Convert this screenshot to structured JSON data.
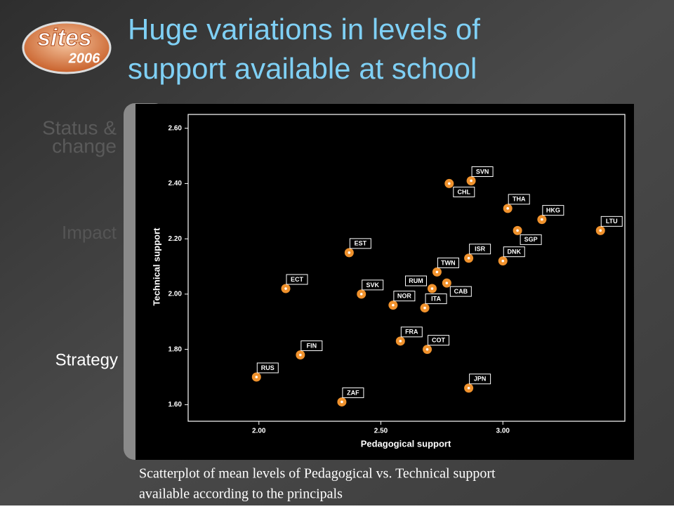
{
  "slide": {
    "title_lines": [
      "Huge variations in levels of",
      "support available at school"
    ],
    "logo": {
      "word": "sites",
      "year": "2006"
    },
    "menu": [
      "Status &",
      "change",
      "Impact",
      "Strategy"
    ],
    "caption_lines": [
      "Scatterplot of mean levels of Pedagogical vs. Technical support",
      "available according to the principals"
    ]
  },
  "chart_data": {
    "type": "scatter",
    "x_label": "Pedagogical support",
    "y_label": "Technical support",
    "color": "#f0922d",
    "series": [
      {
        "labels": [
          "RUS",
          "FIN",
          "ZAF",
          "ECT",
          "EST",
          "SVK",
          "NOR",
          "FRA",
          "COT",
          "ITA",
          "RUM",
          "CAB",
          "TWN",
          "ISR",
          "DNK",
          "JPN",
          "CHL",
          "SVN",
          "THA",
          "HKG",
          "SGP",
          "LTU"
        ],
        "x": [
          1.99,
          2.17,
          2.34,
          2.11,
          2.37,
          2.42,
          2.55,
          2.58,
          2.69,
          2.68,
          2.71,
          2.77,
          2.73,
          2.86,
          3.0,
          2.86,
          2.78,
          2.87,
          3.02,
          3.16,
          3.06,
          3.4
        ],
        "values": [
          1.7,
          1.78,
          1.61,
          2.02,
          2.15,
          2.0,
          1.96,
          1.83,
          1.8,
          1.95,
          2.02,
          2.04,
          2.08,
          2.13,
          2.12,
          1.66,
          2.4,
          2.41,
          2.31,
          2.27,
          2.23,
          2.23
        ]
      }
    ],
    "xlim": [
      1.71,
      3.5
    ],
    "ylim": [
      1.54,
      2.65
    ],
    "xticks": [
      {
        "value": 2.0,
        "label": "2.00"
      },
      {
        "value": 2.5,
        "label": "2.50"
      },
      {
        "value": 3.0,
        "label": "3.00"
      }
    ],
    "yticks": [
      {
        "value": 1.6,
        "label": "1.60"
      },
      {
        "value": 1.8,
        "label": "1.80"
      },
      {
        "value": 2.0,
        "label": "2.00"
      },
      {
        "value": 2.2,
        "label": "2.20"
      },
      {
        "value": 2.4,
        "label": "2.40"
      },
      {
        "value": 2.6,
        "label": "2.60"
      }
    ]
  }
}
